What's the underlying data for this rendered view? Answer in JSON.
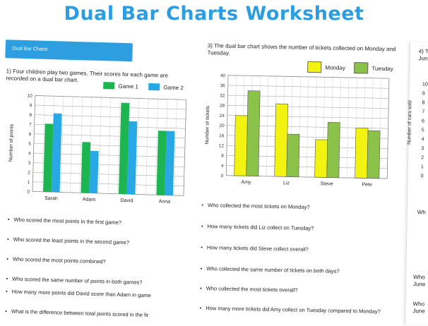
{
  "title": "Dual Bar Charts Worksheet",
  "left": {
    "banner": "Dual Bar Charts",
    "question": "1)   Four children play two games. Their scores for each game are recorded on a dual bar chart.",
    "legend": [
      {
        "label": "Game 1",
        "color": "#1db552"
      },
      {
        "label": "Game 2",
        "color": "#29a8e6"
      }
    ],
    "questions": [
      "Who scored the most points in the first game?",
      "Who scored the least points in the second game?",
      "Who scored the most points combined?",
      "Who scored the same number of points in both games?",
      "How many more points did David score than Adam in game",
      "What is the difference between total points scored in the fir"
    ]
  },
  "middle": {
    "question": "3) The dual bar chart shows the number of tickets collected on Monday and Tuesday.",
    "legend": [
      {
        "label": "Monday",
        "color": "#f3f312"
      },
      {
        "label": "Tuesday",
        "color": "#8bc34a"
      }
    ],
    "questions": [
      "Who collected the most tickets on Monday?",
      "How many tickets did Liz collect on Tuesday?",
      "How many tickets did Steve collect overall?",
      "Who collected the same number of tickets on both days?",
      "Who collected the most tickets overall?",
      "How many more tickets did Amy collect on Tuesday compared to Monday?"
    ]
  },
  "right": {
    "fragments": [
      "4) T",
      "June",
      "Number of cars sold",
      "Wh",
      "Who",
      "June",
      "Who",
      "June"
    ],
    "ticks": [
      "10",
      "9",
      "8",
      "7",
      "6",
      "5",
      "4",
      "3",
      "2",
      "1",
      "0"
    ]
  },
  "chart_data": [
    {
      "type": "bar",
      "title": "",
      "xlabel": "",
      "ylabel": "Number of points",
      "categories": [
        "Sarah",
        "Adam",
        "David",
        "Anna"
      ],
      "series": [
        {
          "name": "Game 1",
          "values": [
            7.1,
            5.3,
            9.5,
            6.7
          ]
        },
        {
          "name": "Game 2",
          "values": [
            8.2,
            4.4,
            7.6,
            6.7
          ]
        }
      ],
      "ylim": [
        0,
        10
      ],
      "yticks": [
        "0",
        "1",
        "2",
        "3",
        "4",
        "5",
        "6",
        "7",
        "8",
        "9",
        "10"
      ],
      "grid": true,
      "legend": "top"
    },
    {
      "type": "bar",
      "title": "",
      "xlabel": "",
      "ylabel": "Number of tickets",
      "categories": [
        "Amy",
        "Liz",
        "Steve",
        "Pete"
      ],
      "series": [
        {
          "name": "Monday",
          "values": [
            24,
            29,
            15,
            20
          ]
        },
        {
          "name": "Tuesday",
          "values": [
            34,
            17,
            22,
            19
          ]
        }
      ],
      "ylim": [
        0,
        40
      ],
      "yticks": [
        "0",
        "4",
        "8",
        "12",
        "16",
        "20",
        "24",
        "28",
        "32",
        "36",
        "40"
      ],
      "grid": true,
      "legend": "top"
    }
  ]
}
